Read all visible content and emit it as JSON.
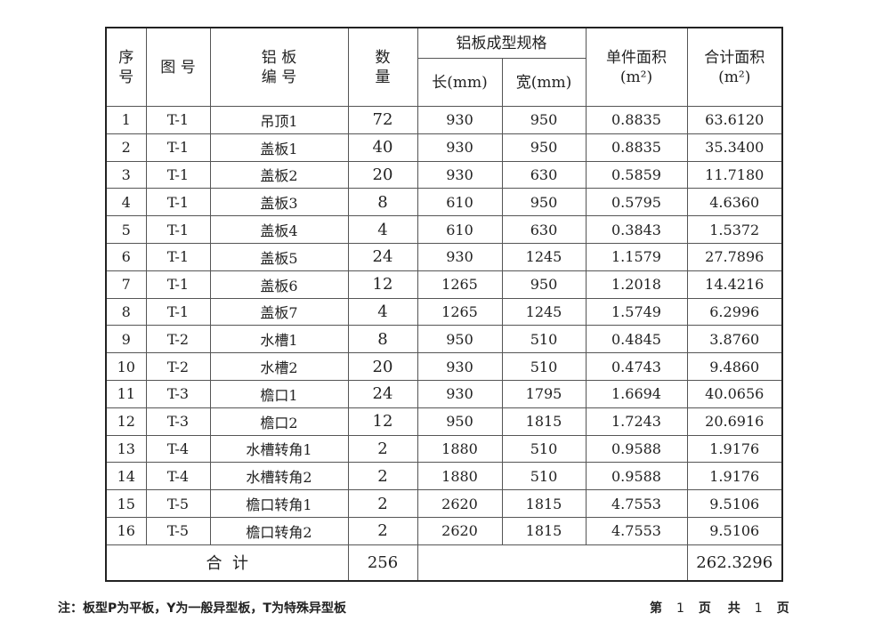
{
  "headers": {
    "seq": "序\n号",
    "drawing": "图 号",
    "panel_no": "铝 板\n编 号",
    "qty": "数\n量",
    "spec": "铝板成型规格",
    "length": "长(mm)",
    "width": "宽(mm)",
    "unit_area": "单件面积\n(m²)",
    "total_area": "合计面积\n(m²)"
  },
  "rows": [
    [
      "1",
      "T-1",
      "吊顶1",
      "72",
      "930",
      "950",
      "0.8835",
      "63.6120"
    ],
    [
      "2",
      "T-1",
      "盖板1",
      "40",
      "930",
      "950",
      "0.8835",
      "35.3400"
    ],
    [
      "3",
      "T-1",
      "盖板2",
      "20",
      "930",
      "630",
      "0.5859",
      "11.7180"
    ],
    [
      "4",
      "T-1",
      "盖板3",
      "8",
      "610",
      "950",
      "0.5795",
      "4.6360"
    ],
    [
      "5",
      "T-1",
      "盖板4",
      "4",
      "610",
      "630",
      "0.3843",
      "1.5372"
    ],
    [
      "6",
      "T-1",
      "盖板5",
      "24",
      "930",
      "1245",
      "1.1579",
      "27.7896"
    ],
    [
      "7",
      "T-1",
      "盖板6",
      "12",
      "1265",
      "950",
      "1.2018",
      "14.4216"
    ],
    [
      "8",
      "T-1",
      "盖板7",
      "4",
      "1265",
      "1245",
      "1.5749",
      "6.2996"
    ],
    [
      "9",
      "T-2",
      "水槽1",
      "8",
      "950",
      "510",
      "0.4845",
      "3.8760"
    ],
    [
      "10",
      "T-2",
      "水槽2",
      "20",
      "930",
      "510",
      "0.4743",
      "9.4860"
    ],
    [
      "11",
      "T-3",
      "檐口1",
      "24",
      "930",
      "1795",
      "1.6694",
      "40.0656"
    ],
    [
      "12",
      "T-3",
      "檐口2",
      "12",
      "950",
      "1815",
      "1.7243",
      "20.6916"
    ],
    [
      "13",
      "T-4",
      "水槽转角1",
      "2",
      "1880",
      "510",
      "0.9588",
      "1.9176"
    ],
    [
      "14",
      "T-4",
      "水槽转角2",
      "2",
      "1880",
      "510",
      "0.9588",
      "1.9176"
    ],
    [
      "15",
      "T-5",
      "檐口转角1",
      "2",
      "2620",
      "1815",
      "4.7553",
      "9.5106"
    ],
    [
      "16",
      "T-5",
      "檐口转角2",
      "2",
      "2620",
      "1815",
      "4.7553",
      "9.5106"
    ]
  ],
  "total": {
    "label": "合  计",
    "qty": "256",
    "area": "262.3296"
  },
  "note": "注：板型P为平板，Y为一般异型板，T为特殊异型板",
  "page": {
    "prefix": "第",
    "current": "1",
    "mid": "页 共",
    "total": "1",
    "suffix": "页"
  }
}
